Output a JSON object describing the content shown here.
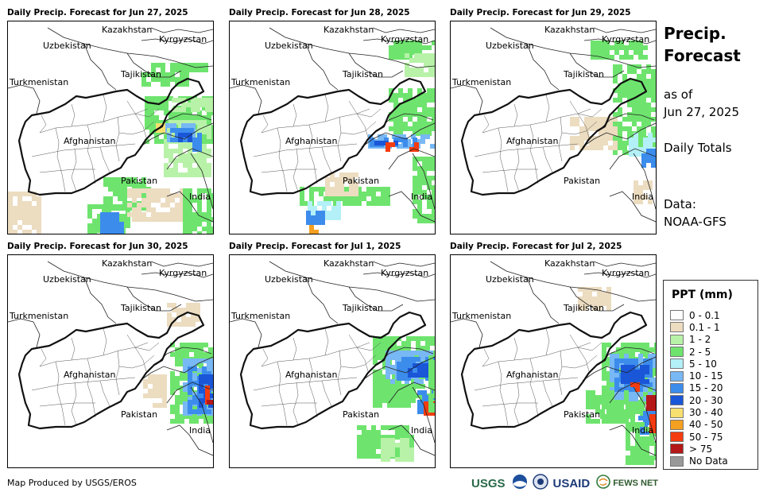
{
  "panels": [
    {
      "title": "Daily Precip. Forecast for Jun 27, 2025"
    },
    {
      "title": "Daily Precip. Forecast for Jun 28, 2025"
    },
    {
      "title": "Daily Precip. Forecast for Jun 29, 2025"
    },
    {
      "title": "Daily Precip. Forecast for Jun 30, 2025"
    },
    {
      "title": "Daily Precip. Forecast for Jul 1, 2025"
    },
    {
      "title": "Daily Precip. Forecast for Jul 2, 2025"
    }
  ],
  "map_labels": {
    "kazakhstan": "Kazakhstan",
    "kyrgyzstan": "Kyrgyzstan",
    "uzbekistan": "Uzbekistan",
    "tajikistan": "Tajikistan",
    "turkmenistan": "Turkmenistan",
    "afghanistan": "Afghanistan",
    "pakistan": "Pakistan",
    "india": "India"
  },
  "side": {
    "title_line1": "Precip.",
    "title_line2": "Forecast",
    "asof_line1": "as of",
    "asof_line2": "Jun 27, 2025",
    "daily": "Daily Totals",
    "data_line1": "Data:",
    "data_line2": "NOAA-GFS"
  },
  "legend": {
    "title": "PPT (mm)",
    "items": [
      {
        "label": "0 - 0.1",
        "color": "#ffffff"
      },
      {
        "label": "0.1 - 1",
        "color": "#ecdcc0"
      },
      {
        "label": "1 - 2",
        "color": "#b8f2a8"
      },
      {
        "label": "2 - 5",
        "color": "#6ee46e"
      },
      {
        "label": "5 - 10",
        "color": "#b4f0f8"
      },
      {
        "label": "10 - 15",
        "color": "#78b8f4"
      },
      {
        "label": "15 - 20",
        "color": "#3c8cec"
      },
      {
        "label": "20 - 30",
        "color": "#1a56d8"
      },
      {
        "label": "30 - 40",
        "color": "#f8e070"
      },
      {
        "label": "40 - 50",
        "color": "#f4a020"
      },
      {
        "label": "50 - 75",
        "color": "#f43c10"
      },
      {
        "label": "> 75",
        "color": "#b41818"
      },
      {
        "label": "No Data",
        "color": "#999999"
      }
    ]
  },
  "footer": {
    "credit": "Map Produced by USGS/EROS"
  },
  "logos": {
    "usgs": "USGS",
    "usaid": "USAID",
    "fewsnet": "FEWS NET"
  }
}
